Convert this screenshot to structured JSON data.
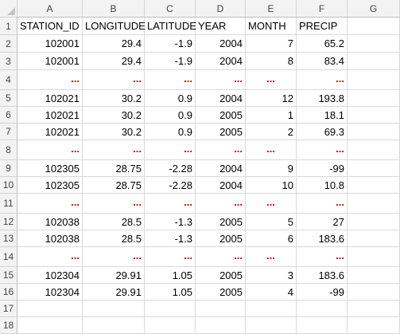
{
  "columns": [
    "A",
    "B",
    "C",
    "D",
    "E",
    "F",
    "G"
  ],
  "rows": [
    {
      "n": "1",
      "kind": "header",
      "cells": [
        "STATION_ID",
        "LONGITUDE",
        "LATITUDE",
        "YEAR",
        "MONTH",
        "PRECIP",
        ""
      ]
    },
    {
      "n": "2",
      "kind": "data",
      "cells": [
        "102001",
        "29.4",
        "-1.9",
        "2004",
        "7",
        "65.2",
        ""
      ]
    },
    {
      "n": "3",
      "kind": "data",
      "cells": [
        "102001",
        "29.4",
        "-1.9",
        "2004",
        "8",
        "83.4",
        ""
      ]
    },
    {
      "n": "4",
      "kind": "ellipsis",
      "cells": [
        "...",
        "...",
        "...",
        "...",
        "...",
        "...",
        ""
      ]
    },
    {
      "n": "5",
      "kind": "data",
      "cells": [
        "102021",
        "30.2",
        "0.9",
        "2004",
        "12",
        "193.8",
        ""
      ]
    },
    {
      "n": "6",
      "kind": "data",
      "cells": [
        "102021",
        "30.2",
        "0.9",
        "2005",
        "1",
        "18.1",
        ""
      ]
    },
    {
      "n": "7",
      "kind": "data",
      "cells": [
        "102021",
        "30.2",
        "0.9",
        "2005",
        "2",
        "69.3",
        ""
      ]
    },
    {
      "n": "8",
      "kind": "ellipsis",
      "cells": [
        "...",
        "...",
        "...",
        "...",
        "...",
        "...",
        ""
      ]
    },
    {
      "n": "9",
      "kind": "data",
      "cells": [
        "102305",
        "28.75",
        "-2.28",
        "2004",
        "9",
        "-99",
        ""
      ]
    },
    {
      "n": "10",
      "kind": "data",
      "cells": [
        "102305",
        "28.75",
        "-2.28",
        "2004",
        "10",
        "10.8",
        ""
      ]
    },
    {
      "n": "11",
      "kind": "ellipsis",
      "cells": [
        "...",
        "...",
        "...",
        "...",
        "...",
        "...",
        ""
      ]
    },
    {
      "n": "12",
      "kind": "data",
      "cells": [
        "102038",
        "28.5",
        "-1.3",
        "2005",
        "5",
        "27",
        ""
      ]
    },
    {
      "n": "13",
      "kind": "data",
      "cells": [
        "102038",
        "28.5",
        "-1.3",
        "2005",
        "6",
        "183.6",
        ""
      ]
    },
    {
      "n": "14",
      "kind": "ellipsis",
      "cells": [
        "...",
        "...",
        "...",
        "...",
        "...",
        "...",
        ""
      ]
    },
    {
      "n": "15",
      "kind": "data",
      "cells": [
        "102304",
        "29.91",
        "1.05",
        "2005",
        "3",
        "183.6",
        ""
      ]
    },
    {
      "n": "16",
      "kind": "data",
      "cells": [
        "102304",
        "29.91",
        "1.05",
        "2005",
        "4",
        "-99",
        ""
      ]
    },
    {
      "n": "17",
      "kind": "empty",
      "cells": [
        "",
        "",
        "",
        "",
        "",
        "",
        ""
      ]
    },
    {
      "n": "18",
      "kind": "empty",
      "cells": [
        "",
        "",
        "",
        "",
        "",
        "",
        ""
      ]
    }
  ],
  "colors": {
    "ellipsis": "#c00000",
    "header_bg": "#f3f3f3",
    "grid": "#d9d9d9"
  }
}
